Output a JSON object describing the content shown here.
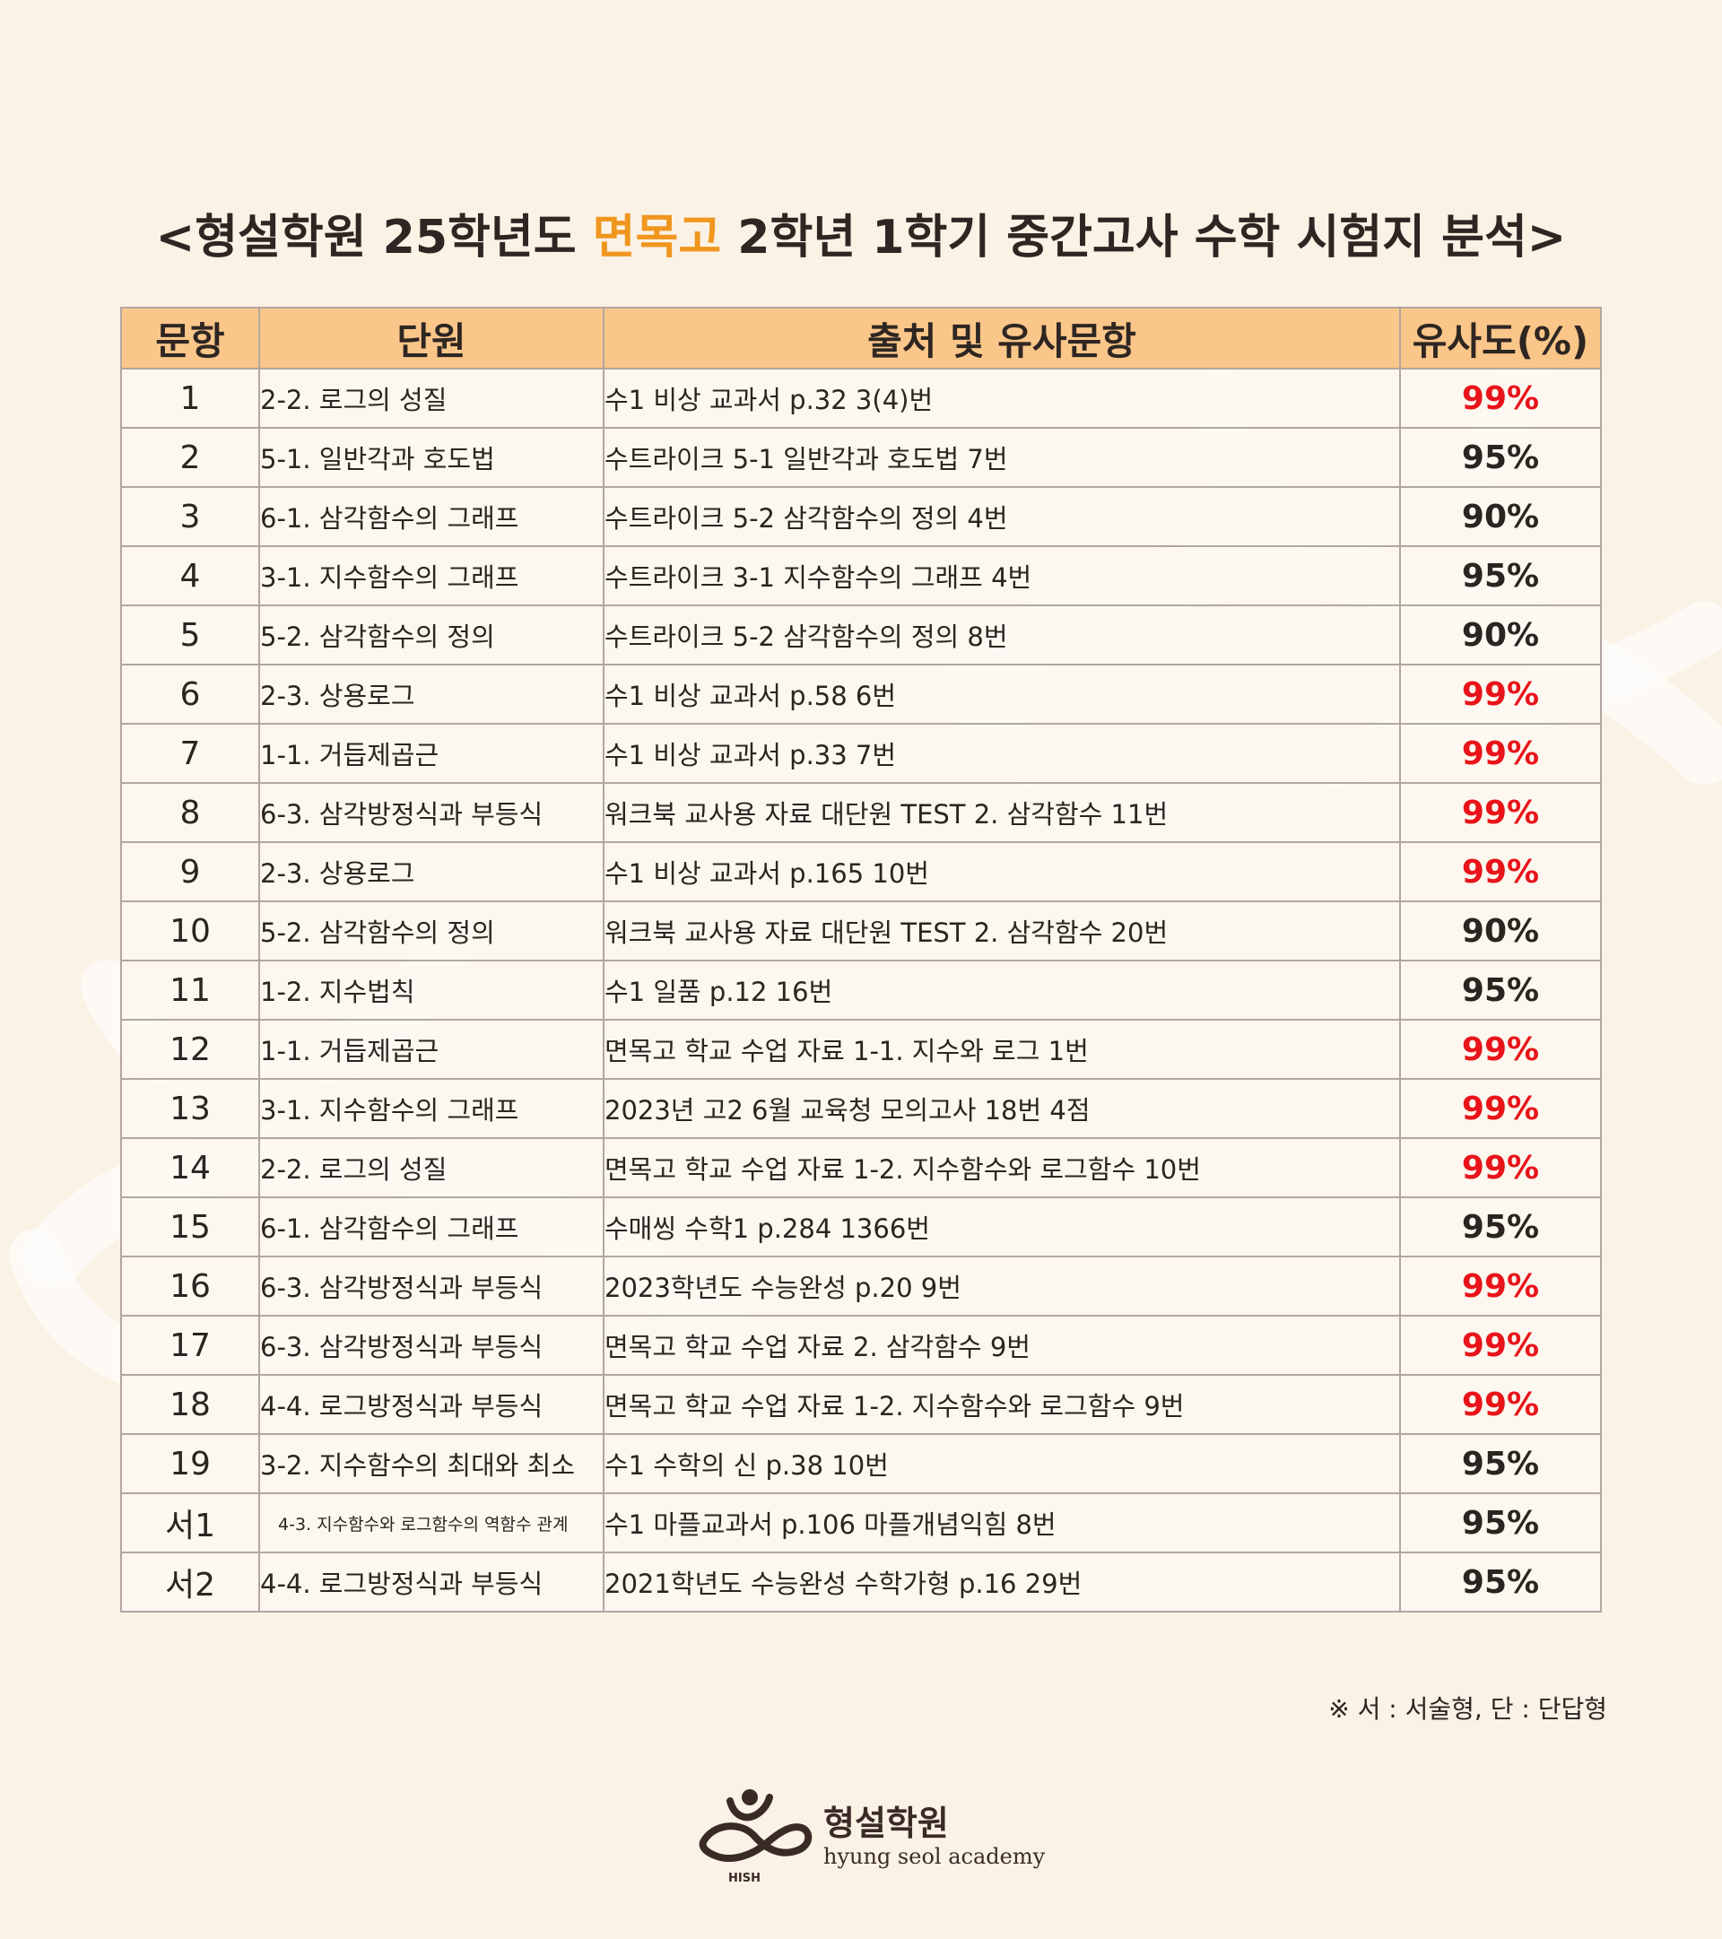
{
  "title": {
    "prefix": "<형설학원 25학년도 ",
    "highlight": "면목고",
    "suffix": " 2학년 1학기 중간고사 수학 시험지 분석>"
  },
  "table": {
    "headers": {
      "num": "문항",
      "unit": "단원",
      "source": "출처 및 유사문항",
      "similarity": "유사도(%)"
    },
    "rows": [
      {
        "num": "1",
        "unit": "2-2. 로그의 성질",
        "source": "수1 비상 교과서 p.32 3(4)번",
        "similarity": "99%"
      },
      {
        "num": "2",
        "unit": "5-1. 일반각과 호도법",
        "source": "수트라이크 5-1 일반각과 호도법 7번",
        "similarity": "95%"
      },
      {
        "num": "3",
        "unit": "6-1. 삼각함수의 그래프",
        "source": "수트라이크 5-2 삼각함수의 정의 4번",
        "similarity": "90%"
      },
      {
        "num": "4",
        "unit": "3-1. 지수함수의 그래프",
        "source": "수트라이크 3-1 지수함수의 그래프 4번",
        "similarity": "95%"
      },
      {
        "num": "5",
        "unit": "5-2. 삼각함수의 정의",
        "source": "수트라이크 5-2 삼각함수의 정의 8번",
        "similarity": "90%"
      },
      {
        "num": "6",
        "unit": "2-3. 상용로그",
        "source": "수1 비상 교과서 p.58 6번",
        "similarity": "99%"
      },
      {
        "num": "7",
        "unit": "1-1. 거듭제곱근",
        "source": "수1 비상 교과서 p.33 7번",
        "similarity": "99%"
      },
      {
        "num": "8",
        "unit": "6-3. 삼각방정식과 부등식",
        "source": "워크북 교사용 자료 대단원 TEST 2. 삼각함수 11번",
        "similarity": "99%"
      },
      {
        "num": "9",
        "unit": "2-3. 상용로그",
        "source": "수1 비상 교과서 p.165 10번",
        "similarity": "99%"
      },
      {
        "num": "10",
        "unit": "5-2. 삼각함수의 정의",
        "source": "워크북 교사용 자료 대단원 TEST 2. 삼각함수 20번",
        "similarity": "90%"
      },
      {
        "num": "11",
        "unit": "1-2. 지수법칙",
        "source": "수1 일품 p.12 16번",
        "similarity": "95%"
      },
      {
        "num": "12",
        "unit": "1-1. 거듭제곱근",
        "source": "면목고 학교 수업 자료 1-1. 지수와 로그 1번",
        "similarity": "99%"
      },
      {
        "num": "13",
        "unit": "3-1. 지수함수의 그래프",
        "source": "2023년 고2 6월 교육청 모의고사 18번 4점",
        "similarity": "99%"
      },
      {
        "num": "14",
        "unit": "2-2. 로그의 성질",
        "source": "면목고 학교 수업 자료 1-2. 지수함수와 로그함수 10번",
        "similarity": "99%"
      },
      {
        "num": "15",
        "unit": "6-1. 삼각함수의 그래프",
        "source": "수매씽 수학1 p.284 1366번",
        "similarity": "95%"
      },
      {
        "num": "16",
        "unit": "6-3. 삼각방정식과 부등식",
        "source": "2023학년도 수능완성 p.20 9번",
        "similarity": "99%"
      },
      {
        "num": "17",
        "unit": "6-3. 삼각방정식과 부등식",
        "source": "면목고 학교 수업 자료 2. 삼각함수 9번",
        "similarity": "99%"
      },
      {
        "num": "18",
        "unit": "4-4. 로그방정식과 부등식",
        "source": "면목고 학교 수업 자료 1-2. 지수함수와 로그함수 9번",
        "similarity": "99%"
      },
      {
        "num": "19",
        "unit": "3-2. 지수함수의 최대와 최소",
        "source": "수1 수학의 신 p.38 10번",
        "similarity": "95%"
      },
      {
        "num": "서1",
        "unit": "4-3. 지수함수와 로그함수의 역함수 관계",
        "source": "수1 마플교과서 p.106 마플개념익힘 8번",
        "similarity": "95%"
      },
      {
        "num": "서2",
        "unit": "4-4. 로그방정식과 부등식",
        "source": "2021학년도 수능완성 수학가형 p.16 29번",
        "similarity": "95%"
      }
    ]
  },
  "note": "※ 서 : 서술형, 단 : 단답형",
  "logo": {
    "korean": "형설학원",
    "english": "hyung seol academy",
    "mark_letters": "HISH"
  },
  "colors": {
    "background": "#fbf2e6",
    "header_fill": "#fbc689",
    "highlight": "#f0961e",
    "red": "#e8141a",
    "dark": "#2b2420"
  }
}
